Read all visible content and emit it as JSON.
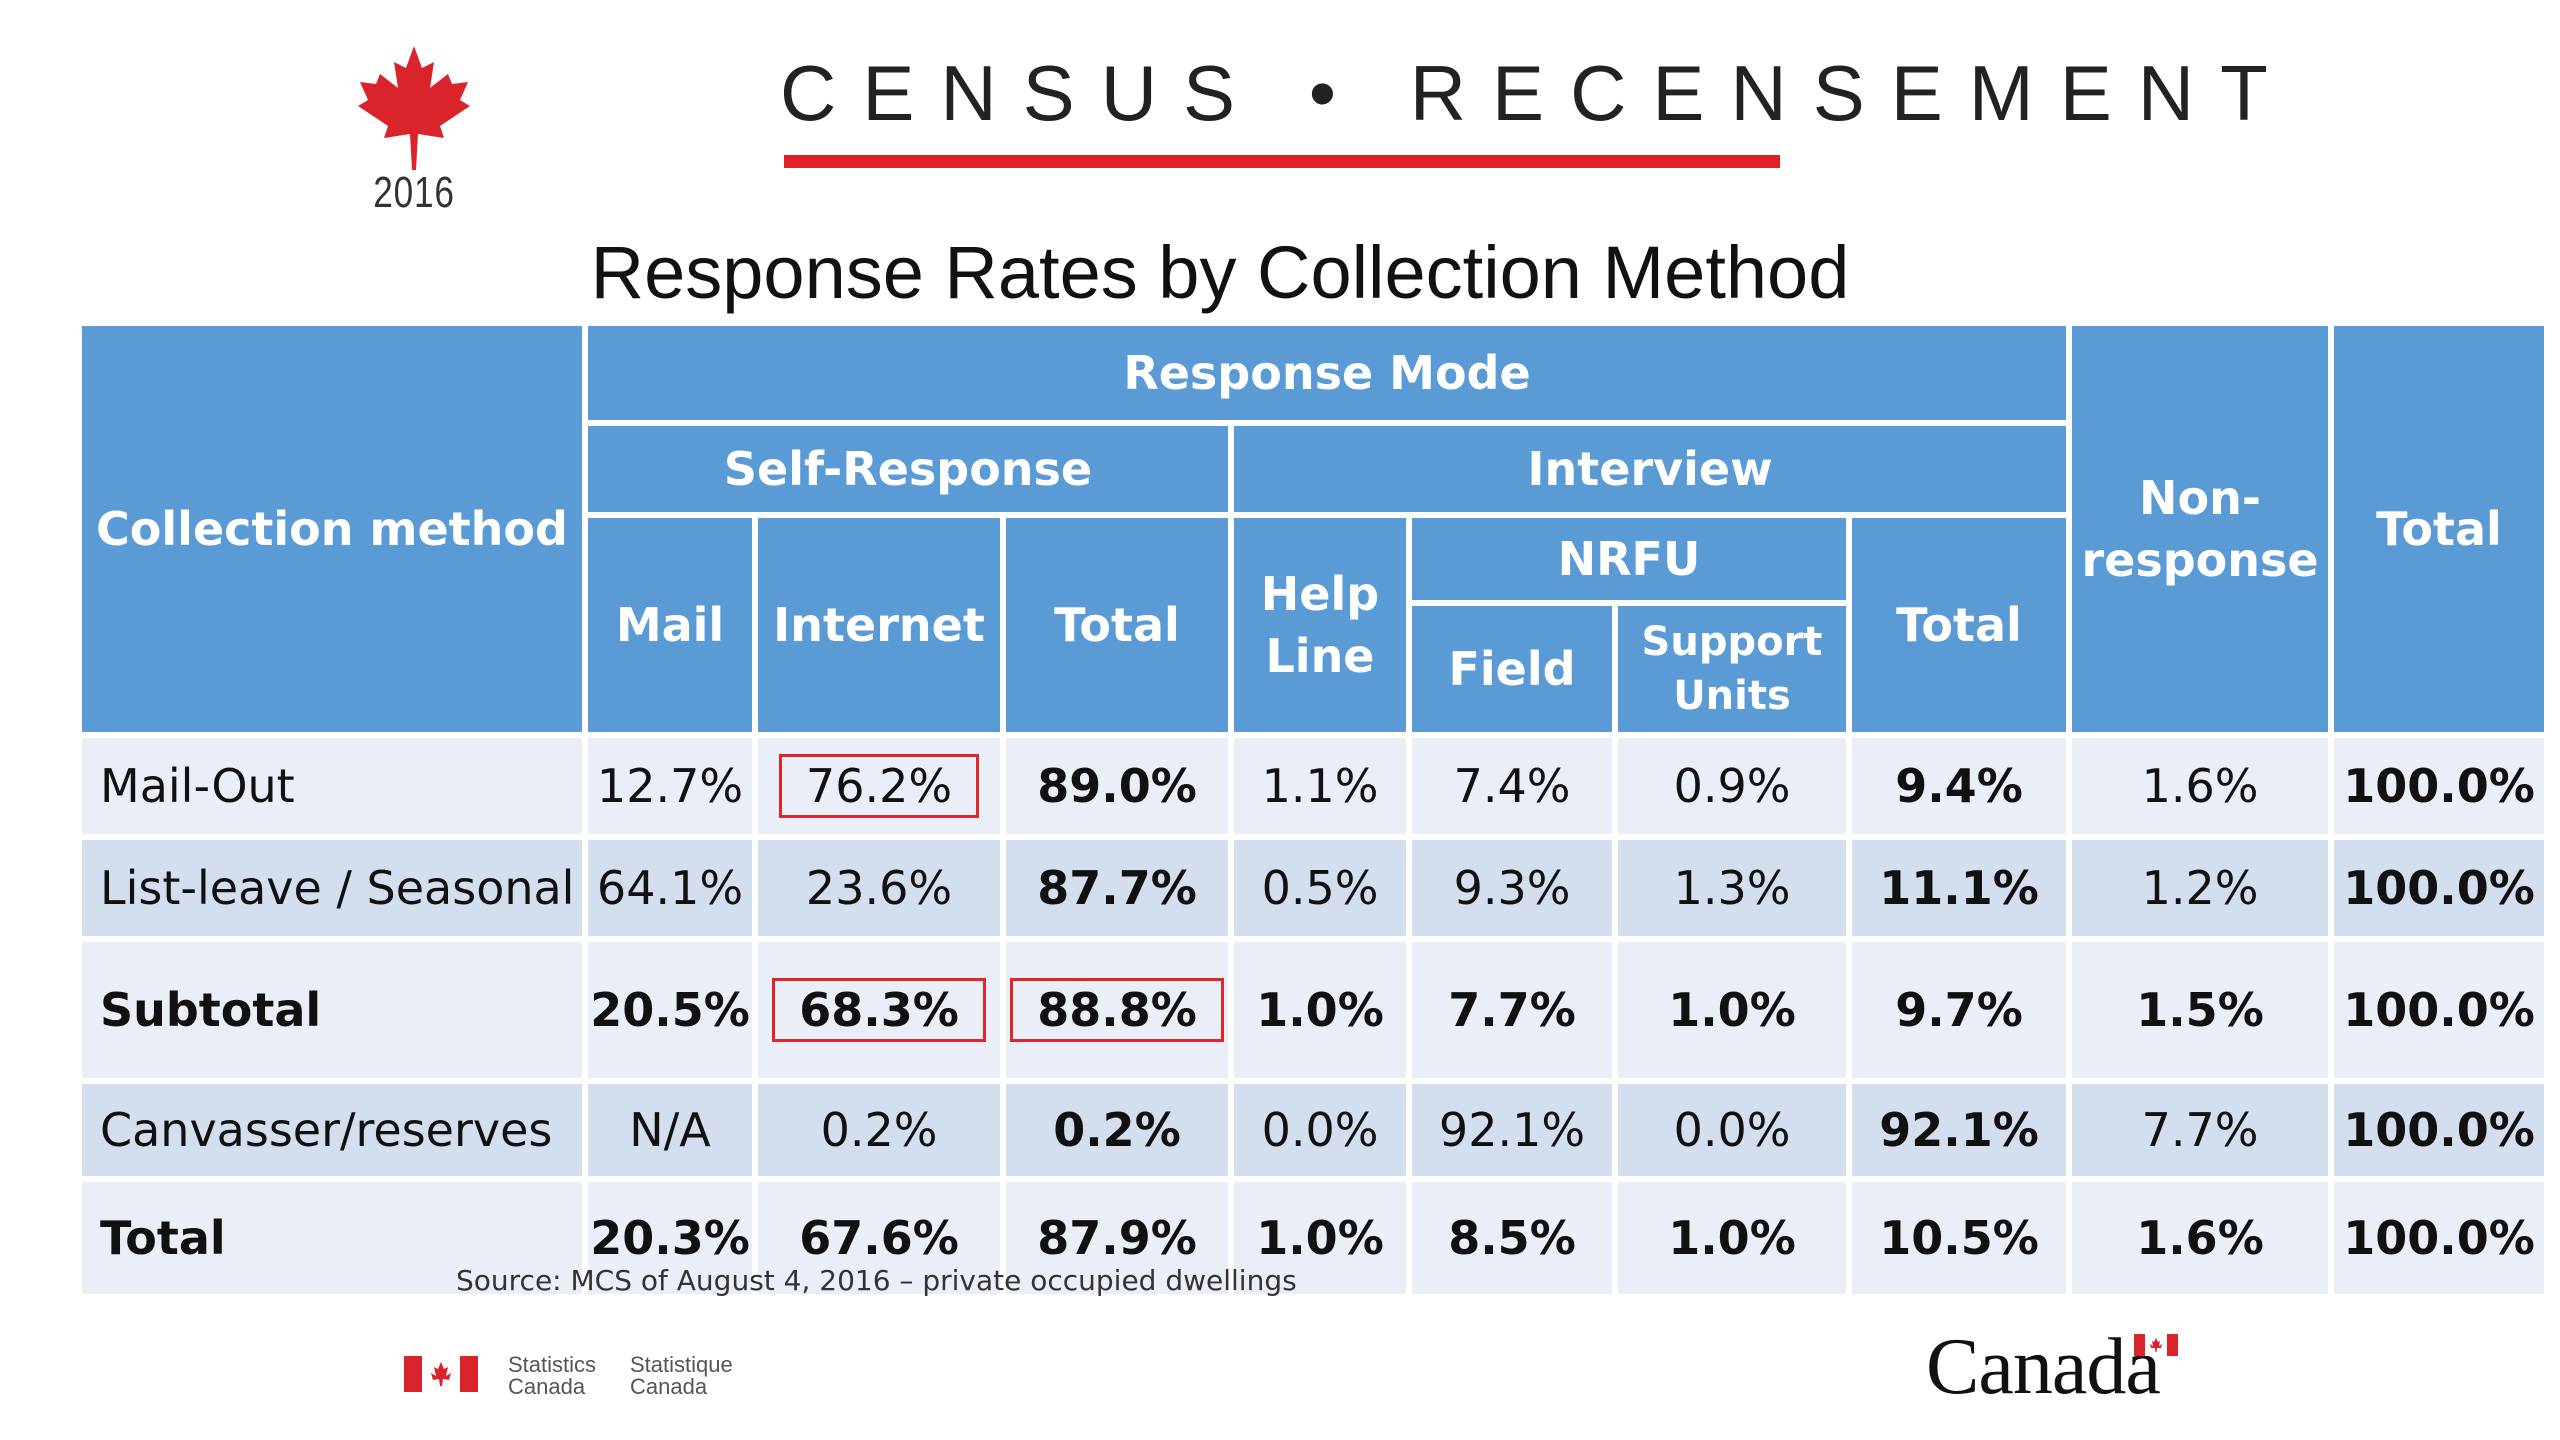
{
  "logo": {
    "icon": "maple-leaf-icon",
    "year": "2016"
  },
  "banner": {
    "text": "CENSUS • RECENSEMENT",
    "bar_color": "#e01f26"
  },
  "title": "Response Rates by Collection Method",
  "colors": {
    "header_bg": "#5b9bd5",
    "row_light": "#e9eef7",
    "row_dark": "#d3deef",
    "highlight_border": "#e0262d"
  },
  "table": {
    "headers": {
      "collection_method": "Collection method",
      "response_mode": "Response Mode",
      "self_response": "Self-Response",
      "interview": "Interview",
      "non_response": "Non-\nresponse",
      "total": "Total",
      "mail": "Mail",
      "internet": "Internet",
      "self_total": "Total",
      "help_line": "Help\nLine",
      "nrfu": "NRFU",
      "field": "Field",
      "support_units": "Support\nUnits",
      "interview_total": "Total"
    },
    "rows": [
      {
        "name": "Mail-Out",
        "mail": "12.7%",
        "internet": "76.2%",
        "self_total": "89.0%",
        "help_line": "1.1%",
        "field": "7.4%",
        "support_units": "0.9%",
        "interview_total": "9.4%",
        "non_response": "1.6%",
        "total": "100.0%"
      },
      {
        "name": "List-leave / Seasonal",
        "mail": "64.1%",
        "internet": "23.6%",
        "self_total": "87.7%",
        "help_line": "0.5%",
        "field": "9.3%",
        "support_units": "1.3%",
        "interview_total": "11.1%",
        "non_response": "1.2%",
        "total": "100.0%"
      },
      {
        "name": "Subtotal",
        "mail": "20.5%",
        "internet": "68.3%",
        "self_total": "88.8%",
        "help_line": "1.0%",
        "field": "7.7%",
        "support_units": "1.0%",
        "interview_total": "9.7%",
        "non_response": "1.5%",
        "total": "100.0%"
      },
      {
        "name": "Canvasser/reserves",
        "mail": "N/A",
        "internet": "0.2%",
        "self_total": "0.2%",
        "help_line": "0.0%",
        "field": "92.1%",
        "support_units": "0.0%",
        "interview_total": "92.1%",
        "non_response": "7.7%",
        "total": "100.0%"
      },
      {
        "name": "Total",
        "mail": "20.3%",
        "internet": "67.6%",
        "self_total": "87.9%",
        "help_line": "1.0%",
        "field": "8.5%",
        "support_units": "1.0%",
        "interview_total": "10.5%",
        "non_response": "1.6%",
        "total": "100.0%"
      }
    ]
  },
  "source": "Source: MCS of August 4, 2016 – private occupied dwellings",
  "footer": {
    "flag_icon": "canada-flag-icon",
    "statistics_en": "Statistics\nCanada",
    "statistics_fr": "Statistique\nCanada",
    "wordmark": "Canada",
    "wordmark_flag_icon": "canada-wordmark-flag-icon"
  }
}
